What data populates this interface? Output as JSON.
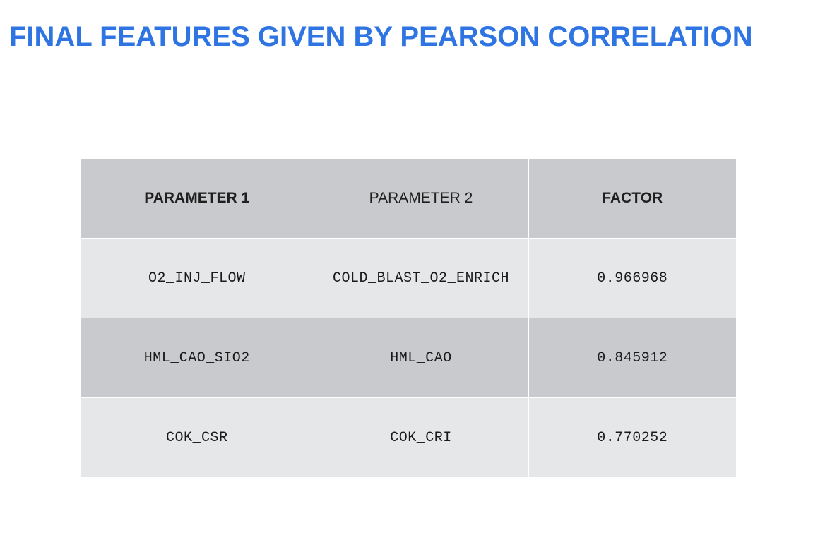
{
  "title": "FINAL FEATURES GIVEN BY PEARSON CORRELATION",
  "table": {
    "headers": [
      "PARAMETER 1",
      "PARAMETER 2",
      "FACTOR"
    ],
    "rows": [
      [
        "O2_INJ_FLOW",
        "COLD_BLAST_O2_ENRICH",
        "0.966968"
      ],
      [
        "HML_CAO_SIO2",
        "HML_CAO",
        "0.845912"
      ],
      [
        "COK_CSR",
        "COK_CRI",
        "0.770252"
      ]
    ]
  },
  "colors": {
    "title": "#2f74e3",
    "header_bg": "#c9cacd",
    "row_light_bg": "#e6e7e9",
    "row_dark_bg": "#c9cacd"
  }
}
